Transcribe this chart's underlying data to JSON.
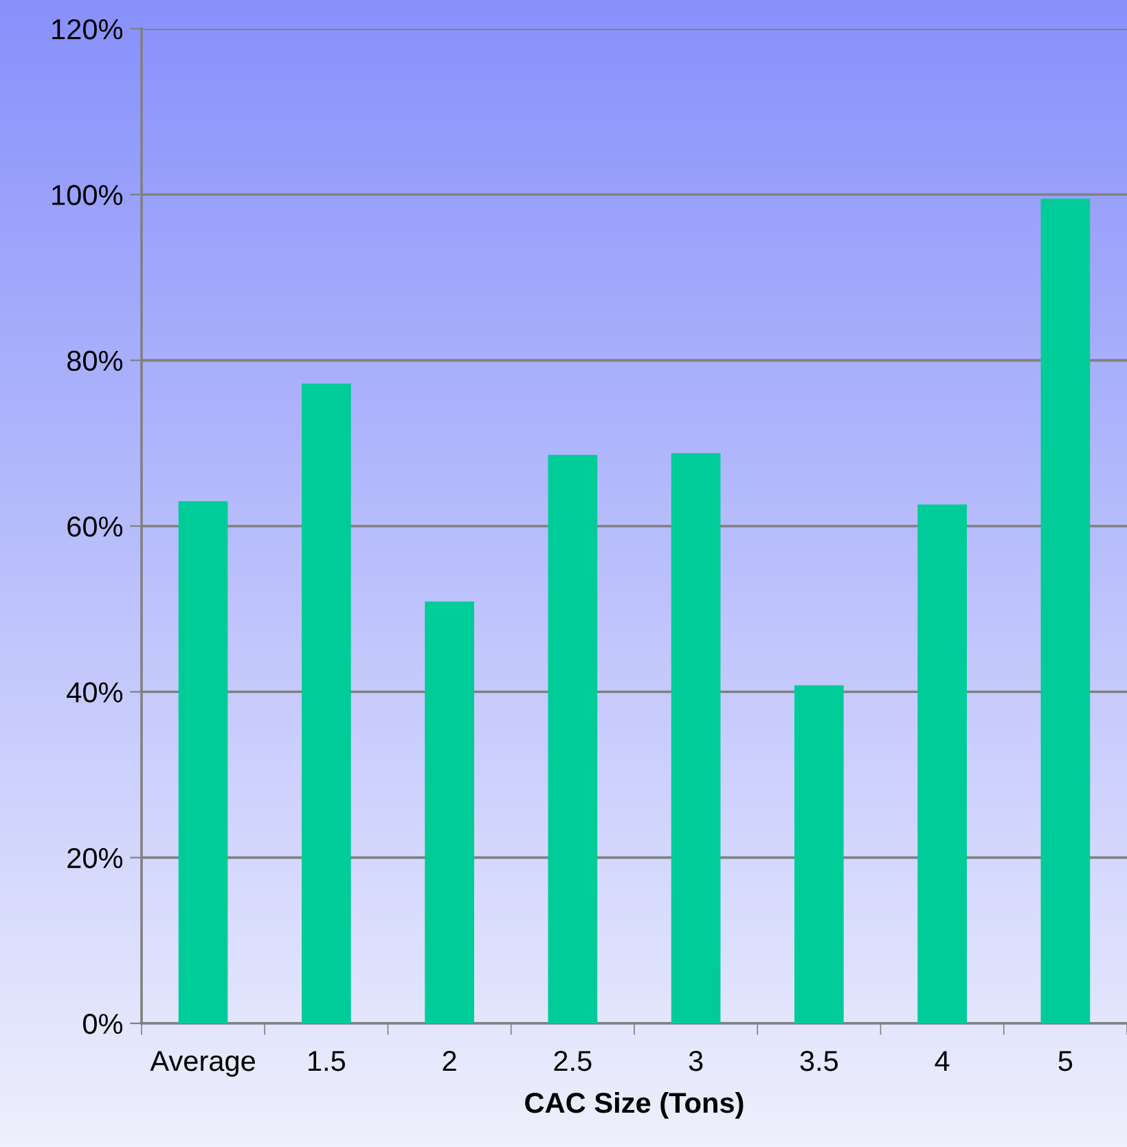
{
  "chart_data": {
    "type": "bar",
    "xlabel": "CAC Size (Tons)",
    "categories": [
      "Average",
      "1.5",
      "2",
      "2.5",
      "3",
      "3.5",
      "4",
      "5"
    ],
    "values": [
      63.0,
      77.2,
      50.9,
      68.6,
      68.8,
      40.8,
      62.6,
      99.5
    ],
    "color": "#00cc99",
    "ylim": [
      0,
      120
    ],
    "yticks": [
      {
        "value": 0,
        "label": "0%"
      },
      {
        "value": 20,
        "label": "20%"
      },
      {
        "value": 40,
        "label": "40%"
      },
      {
        "value": 60,
        "label": "60%"
      },
      {
        "value": 80,
        "label": "80%"
      },
      {
        "value": 100,
        "label": "100%"
      },
      {
        "value": 120,
        "label": "120%"
      }
    ],
    "grid": "y",
    "legend": false
  }
}
